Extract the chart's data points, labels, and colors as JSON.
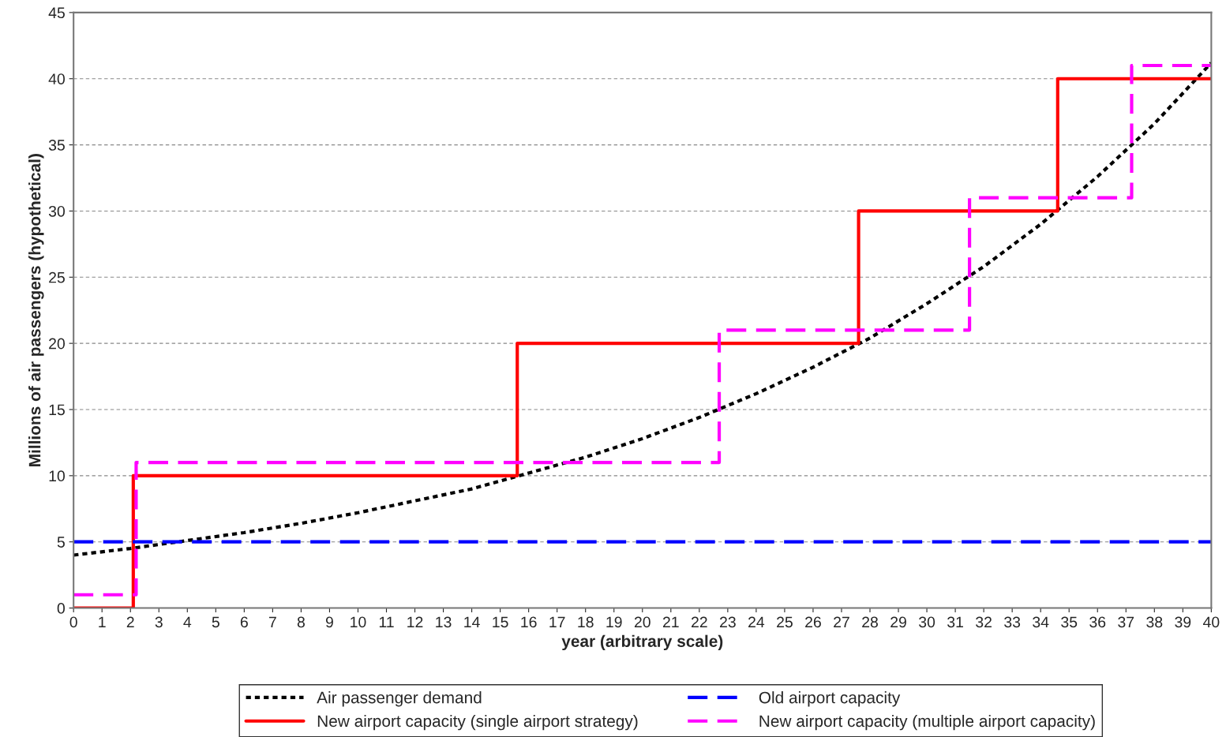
{
  "chart_data": {
    "type": "line",
    "xlabel": "year (arbitrary scale)",
    "ylabel": "Millions of air passengers (hypothetical)",
    "xlim": [
      0,
      40
    ],
    "xticks": [
      0,
      1,
      2,
      3,
      4,
      5,
      6,
      7,
      8,
      9,
      10,
      11,
      12,
      13,
      14,
      15,
      16,
      17,
      18,
      19,
      20,
      21,
      22,
      23,
      24,
      25,
      26,
      27,
      28,
      29,
      30,
      31,
      32,
      33,
      34,
      35,
      36,
      37,
      38,
      39,
      40
    ],
    "ylim": [
      0,
      45
    ],
    "yticks": [
      0,
      5,
      10,
      15,
      20,
      25,
      30,
      35,
      40,
      45
    ],
    "grid": "y",
    "legend": "bottom",
    "marker": "none",
    "series": [
      {
        "name": "Air passenger demand",
        "line_style": "dotted",
        "color": "#000000",
        "x": [
          0,
          2,
          4,
          6,
          8,
          10,
          12,
          14,
          16,
          18,
          20,
          22,
          24,
          26,
          28,
          30,
          32,
          34,
          36,
          38,
          40
        ],
        "values": [
          4.0,
          4.5,
          5.1,
          5.7,
          6.4,
          7.2,
          8.1,
          9.0,
          10.2,
          11.4,
          12.8,
          14.4,
          16.2,
          18.2,
          20.4,
          23.0,
          25.8,
          29.0,
          32.6,
          36.6,
          41.2
        ]
      },
      {
        "name": "New airport capacity (single airport strategy)",
        "type": "step",
        "line_style": "solid",
        "color": "#ff0000",
        "x": [
          0,
          2.1,
          15.6,
          27.6,
          34.6,
          40
        ],
        "values": [
          0,
          10,
          20,
          30,
          40,
          40
        ]
      },
      {
        "name": "Old airport capacity",
        "line_style": "dashed",
        "color": "#0000ff",
        "x": [
          0,
          40
        ],
        "values": [
          5,
          5
        ]
      },
      {
        "name": "New airport capacity (multiple airport capacity)",
        "type": "step",
        "line_style": "dashed",
        "color": "#ff00ff",
        "x": [
          0,
          2.2,
          22.7,
          31.5,
          37.2,
          40
        ],
        "values": [
          1,
          11,
          21,
          31,
          41,
          41
        ]
      }
    ]
  }
}
